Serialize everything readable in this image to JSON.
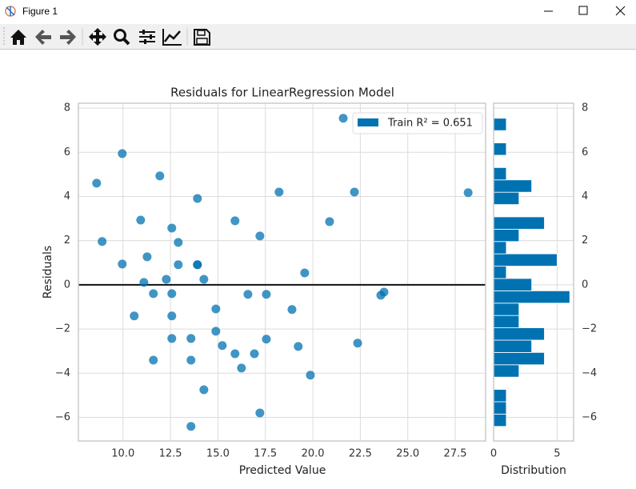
{
  "window": {
    "title": "Figure 1"
  },
  "chart_data": [
    {
      "type": "scatter",
      "title": "Residuals for LinearRegression Model",
      "x_label": "Predicted Value",
      "y_label": "Residuals",
      "series": [
        {
          "name": "Train R² = 0.651",
          "color": "#0072b2",
          "x": [
            8.61,
            8.9,
            9.96,
            9.96,
            10.59,
            10.93,
            11.1,
            11.27,
            11.6,
            11.6,
            11.94,
            12.28,
            12.57,
            12.57,
            12.57,
            12.57,
            12.91,
            12.91,
            13.58,
            13.58,
            13.58,
            13.92,
            13.92,
            13.92,
            14.26,
            14.26,
            14.89,
            14.89,
            15.23,
            15.9,
            15.9,
            16.24,
            16.58,
            16.92,
            17.21,
            17.21,
            17.55,
            17.55,
            18.22,
            18.9,
            19.23,
            19.57,
            19.87,
            20.88,
            21.6,
            22.19,
            22.36,
            23.58,
            23.75,
            28.18
          ],
          "values": [
            4.6,
            1.96,
            5.94,
            0.94,
            -1.41,
            2.93,
            0.11,
            1.27,
            -0.4,
            -3.41,
            4.93,
            0.25,
            2.57,
            -0.4,
            -1.41,
            -2.43,
            1.92,
            0.91,
            -2.43,
            -3.41,
            -6.41,
            3.91,
            0.91,
            0.91,
            0.25,
            -4.75,
            -1.09,
            -2.1,
            -2.75,
            2.9,
            -3.12,
            -3.77,
            -0.43,
            -3.12,
            2.21,
            -5.8,
            -0.43,
            -2.46,
            4.2,
            -1.12,
            -2.79,
            0.54,
            -4.09,
            2.86,
            7.54,
            4.2,
            -2.64,
            -0.47,
            -0.33,
            4.17
          ]
        }
      ],
      "axhline": 0,
      "xlim": [
        7.65,
        29.1
      ],
      "ylim": [
        -7.07,
        8.22
      ],
      "xticks": [
        {
          "value": 10,
          "label": "10.0"
        },
        12.5,
        {
          "value": 15,
          "label": "15.0"
        },
        17.5,
        {
          "value": 20,
          "label": "20.0"
        },
        22.5,
        {
          "value": 25,
          "label": "25.0"
        },
        27.5
      ],
      "yticks": [
        {
          "value": -6,
          "label": "−6"
        },
        {
          "value": -4,
          "label": "−4"
        },
        {
          "value": -2,
          "label": "−2"
        },
        0,
        2,
        4,
        6,
        8
      ],
      "grid": true,
      "legend": "upper right"
    },
    {
      "type": "histogram",
      "orientation": "horizontal",
      "x_label": "Distribution",
      "color": "#0072b2",
      "bins": [
        -6.41,
        -5.852,
        -5.294,
        -4.736,
        -4.178,
        -3.62,
        -3.062,
        -2.504,
        -1.946,
        -1.388,
        -0.83,
        -0.272,
        0.286,
        0.844,
        1.402,
        1.96,
        2.518,
        3.076,
        3.634,
        4.192,
        4.75,
        5.308,
        5.866,
        6.424,
        6.982,
        7.54
      ],
      "values": [
        1,
        1,
        1,
        0,
        2,
        4,
        3,
        4,
        2,
        2,
        6,
        3,
        1,
        5,
        1,
        2,
        4,
        0,
        2,
        3,
        1,
        0,
        1,
        0,
        1
      ],
      "xlim": [
        0,
        6.3
      ],
      "ylim": [
        -7.07,
        8.22
      ],
      "xticks": [
        0,
        5
      ],
      "yticks": [
        {
          "value": -6,
          "label": "−6"
        },
        {
          "value": -4,
          "label": "−4"
        },
        {
          "value": -2,
          "label": "−2"
        },
        0,
        2,
        4,
        6,
        8
      ],
      "grid": true
    }
  ]
}
